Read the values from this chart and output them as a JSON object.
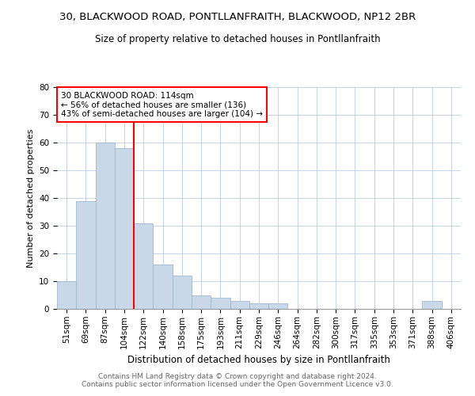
{
  "title": "30, BLACKWOOD ROAD, PONTLLANFRAITH, BLACKWOOD, NP12 2BR",
  "subtitle": "Size of property relative to detached houses in Pontllanfraith",
  "xlabel": "Distribution of detached houses by size in Pontllanfraith",
  "ylabel": "Number of detached properties",
  "categories": [
    "51sqm",
    "69sqm",
    "87sqm",
    "104sqm",
    "122sqm",
    "140sqm",
    "158sqm",
    "175sqm",
    "193sqm",
    "211sqm",
    "229sqm",
    "246sqm",
    "264sqm",
    "282sqm",
    "300sqm",
    "317sqm",
    "335sqm",
    "353sqm",
    "371sqm",
    "388sqm",
    "406sqm"
  ],
  "values": [
    10,
    39,
    60,
    58,
    31,
    16,
    12,
    5,
    4,
    3,
    2,
    2,
    0,
    0,
    0,
    0,
    0,
    0,
    0,
    3,
    0
  ],
  "bar_color": "#c8d8e8",
  "bar_edge_color": "#a0b8cc",
  "vline_x": 3.5,
  "vline_color": "red",
  "annotation_text": "30 BLACKWOOD ROAD: 114sqm\n← 56% of detached houses are smaller (136)\n43% of semi-detached houses are larger (104) →",
  "annotation_box_color": "white",
  "annotation_box_edge_color": "red",
  "ylim": [
    0,
    80
  ],
  "yticks": [
    0,
    10,
    20,
    30,
    40,
    50,
    60,
    70,
    80
  ],
  "footer": "Contains HM Land Registry data © Crown copyright and database right 2024.\nContains public sector information licensed under the Open Government Licence v3.0.",
  "title_fontsize": 9.5,
  "subtitle_fontsize": 8.5,
  "xlabel_fontsize": 8.5,
  "ylabel_fontsize": 8,
  "tick_fontsize": 7.5,
  "annotation_fontsize": 7.5,
  "footer_fontsize": 6.5
}
